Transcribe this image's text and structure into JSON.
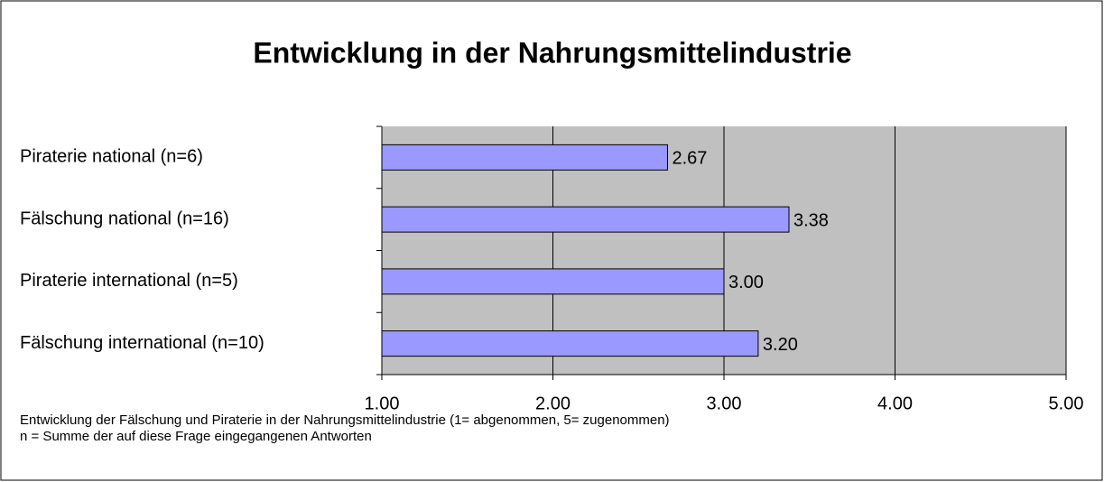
{
  "chart_data": {
    "type": "bar",
    "orientation": "horizontal",
    "title": "Entwicklung in der Nahrungsmittelindustrie",
    "categories": [
      "Piraterie national (n=6)",
      "Fälschung national (n=16)",
      "Piraterie international (n=5)",
      "Fälschung international (n=10)"
    ],
    "values": [
      2.67,
      3.38,
      3.0,
      3.2
    ],
    "value_labels": [
      "2.67",
      "3.38",
      "3.00",
      "3.20"
    ],
    "color": "#9999ff",
    "xlim": [
      1,
      5
    ],
    "xticks": [
      {
        "value": 1,
        "label": "1.00"
      },
      {
        "value": 2,
        "label": "2.00"
      },
      {
        "value": 3,
        "label": "3.00"
      },
      {
        "value": 4,
        "label": "4.00"
      },
      {
        "value": 5,
        "label": "5.00"
      }
    ],
    "grid": true,
    "notes": [
      "Entwicklung der Fälschung und Piraterie in der Nahrungsmittelindustrie (1= abgenommen, 5= zugenommen)",
      "n = Summe der auf diese Frage eingegangenen Antworten"
    ]
  }
}
